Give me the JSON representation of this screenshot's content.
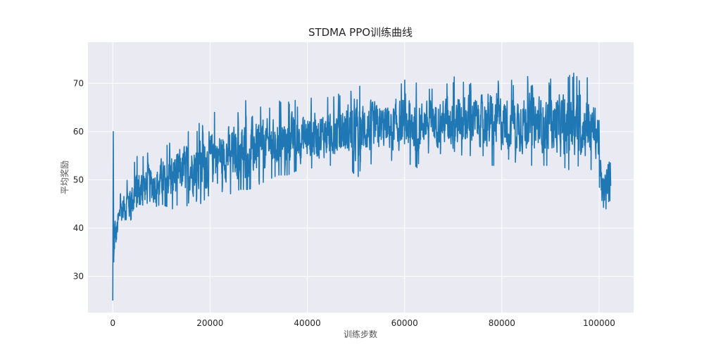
{
  "chart_data": {
    "type": "line",
    "title": "STDMA PPO训练曲线",
    "xlabel": "训练步数",
    "ylabel": "平均奖励",
    "xlim": [
      -5100,
      107100
    ],
    "ylim": [
      22.5,
      78.5
    ],
    "xticks": [
      0,
      20000,
      40000,
      60000,
      80000,
      100000
    ],
    "xtick_labels": [
      "0",
      "20000",
      "40000",
      "60000",
      "80000",
      "100000"
    ],
    "yticks": [
      30,
      40,
      50,
      60,
      70
    ],
    "ytick_labels": [
      "30",
      "40",
      "50",
      "60",
      "70"
    ],
    "grid": true,
    "background": "#eaeaf2",
    "series": [
      {
        "color": "#1f77b4",
        "x": [
          0,
          100,
          200,
          400,
          700,
          1000,
          1500,
          2000,
          3000,
          4000,
          5000,
          6000,
          8000,
          10000,
          12000,
          14000,
          16000,
          18000,
          20000,
          22000,
          24000,
          26000,
          28000,
          30000,
          32000,
          34000,
          36000,
          38000,
          40000,
          42000,
          44000,
          46000,
          48000,
          50000,
          52000,
          54000,
          56000,
          58000,
          60000,
          62000,
          64000,
          66000,
          68000,
          70000,
          72000,
          74000,
          76000,
          78000,
          80000,
          82000,
          84000,
          86000,
          88000,
          90000,
          92000,
          94000,
          96000,
          98000,
          99000,
          100000,
          100300,
          100700,
          101000,
          101500,
          102000,
          102400
        ],
        "values": [
          25.0,
          60.0,
          33.0,
          40.0,
          38.0,
          41.0,
          43.0,
          44.0,
          45.0,
          46.0,
          47.0,
          48.0,
          49.0,
          50.0,
          51.0,
          52.0,
          52.5,
          53.0,
          54.0,
          55.0,
          55.5,
          56.0,
          56.5,
          57.0,
          57.5,
          58.0,
          58.3,
          58.6,
          59.0,
          59.3,
          59.6,
          60.0,
          60.2,
          60.4,
          60.6,
          60.8,
          61.0,
          61.2,
          61.4,
          61.6,
          61.8,
          62.0,
          62.1,
          62.2,
          62.3,
          62.3,
          62.2,
          62.1,
          62.0,
          61.9,
          61.8,
          61.7,
          61.6,
          61.5,
          61.4,
          61.3,
          61.2,
          61.0,
          60.5,
          59.0,
          50.0,
          48.0,
          47.0,
          49.0,
          51.0,
          52.0
        ],
        "max": [
          60,
          60,
          44,
          44,
          45,
          47,
          49,
          51,
          52,
          56,
          60,
          57,
          58,
          59,
          60,
          61,
          62,
          63,
          68,
          64,
          65,
          66,
          71,
          66,
          67,
          68,
          68,
          68,
          68,
          69,
          69,
          70,
          70,
          73,
          71,
          70,
          70,
          71,
          73,
          72,
          70,
          71,
          71,
          75,
          73,
          72,
          72,
          74,
          72,
          71,
          73,
          72,
          72,
          73,
          74,
          75,
          76,
          72,
          69,
          69,
          57,
          57,
          56,
          57,
          58,
          58
        ],
        "min": [
          25,
          25,
          32,
          33,
          36,
          38,
          40,
          41,
          41,
          42,
          42,
          43,
          44,
          45,
          44,
          44,
          45,
          45,
          47,
          47,
          46,
          48,
          48,
          49,
          50,
          51,
          51,
          52,
          52,
          53,
          53,
          53,
          53,
          50,
          53,
          53,
          54,
          54,
          54,
          51,
          55,
          55,
          55,
          56,
          55,
          55,
          55,
          53,
          53,
          53,
          53,
          53,
          53,
          53,
          53,
          52,
          53,
          52,
          52,
          50,
          40,
          42,
          44,
          44,
          45,
          45
        ]
      }
    ]
  }
}
